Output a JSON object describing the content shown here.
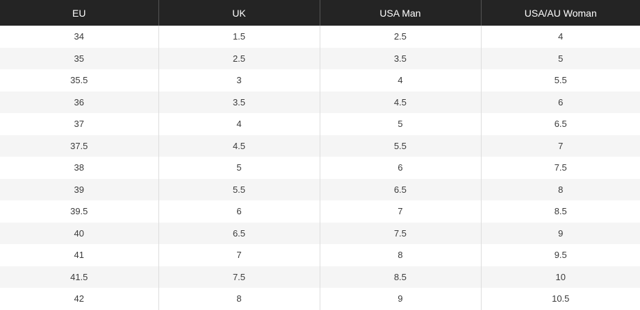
{
  "table": {
    "headers": [
      "EU",
      "UK",
      "USA Man",
      "USA/AU Woman"
    ],
    "rows": [
      [
        "34",
        "1.5",
        "2.5",
        "4"
      ],
      [
        "35",
        "2.5",
        "3.5",
        "5"
      ],
      [
        "35.5",
        "3",
        "4",
        "5.5"
      ],
      [
        "36",
        "3.5",
        "4.5",
        "6"
      ],
      [
        "37",
        "4",
        "5",
        "6.5"
      ],
      [
        "37.5",
        "4.5",
        "5.5",
        "7"
      ],
      [
        "38",
        "5",
        "6",
        "7.5"
      ],
      [
        "39",
        "5.5",
        "6.5",
        "8"
      ],
      [
        "39.5",
        "6",
        "7",
        "8.5"
      ],
      [
        "40",
        "6.5",
        "7.5",
        "9"
      ],
      [
        "41",
        "7",
        "8",
        "9.5"
      ],
      [
        "41.5",
        "7.5",
        "8.5",
        "10"
      ],
      [
        "42",
        "8",
        "9",
        "10.5"
      ]
    ]
  }
}
